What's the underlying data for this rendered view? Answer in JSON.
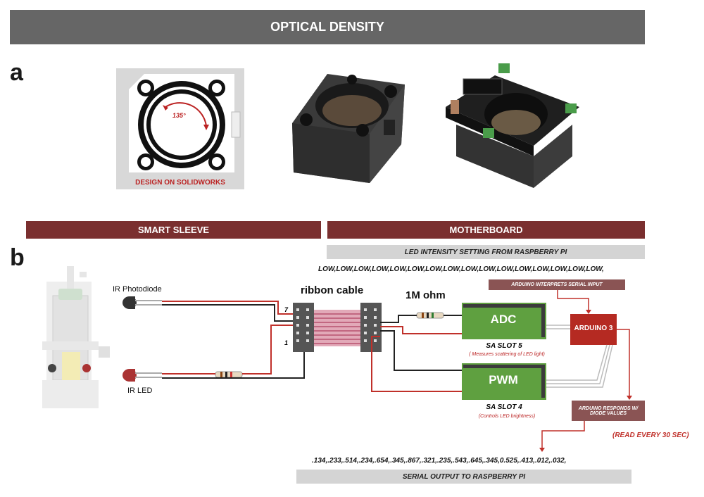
{
  "title": "OPTICAL DENSITY",
  "panels": {
    "a": "a",
    "b": "b"
  },
  "design_caption": "DESIGN ON SOLIDWORKS",
  "angle_label": "135°",
  "sections": {
    "left": "SMART SLEEVE",
    "right": "MOTHERBOARD"
  },
  "led_setting": "LED INTENSITY SETTING FROM RASPBERRY PI",
  "low_string": "LOW,LOW,LOW,LOW,LOW,LOW,LOW,LOW,LOW,LOW,LOW,LOW,LOW,LOW,LOW,LOW,",
  "arduino_interprets": "ARDUINO INTERPRETS SERIAL INPUT",
  "labels": {
    "ir_photodiode": "IR Photodiode",
    "ir_led": "IR LED",
    "ribbon_cable": "ribbon cable",
    "resistor": "1M ohm",
    "pin7": "7",
    "pin1": "1",
    "adc": "ADC",
    "pwm": "PWM",
    "arduino": "ARDUINO 3",
    "sa_slot5": "SA SLOT 5",
    "sa_slot5_note": "( Measures scattering of LED light)",
    "sa_slot4": "SA SLOT 4",
    "sa_slot4_note": "(Controls LED brightness)"
  },
  "arduino_responds": "ARDUINO RESPONDS W/ DIODE VALUES",
  "read_every": "(READ EVERY 30 SEC)",
  "serial_values": ".134,.233,.514,.234,.654,.345,.867,.321,.235,.543,.645,.345,0.525,.413,.012,.032,",
  "serial_output": "SERIAL OUTPUT TO RASPBERRY PI",
  "colors": {
    "title_bar": "#666666",
    "section_bar": "#7a2f2f",
    "board_green": "#5fa040",
    "arduino_red": "#b52a22",
    "wire_red": "#c0302a"
  }
}
